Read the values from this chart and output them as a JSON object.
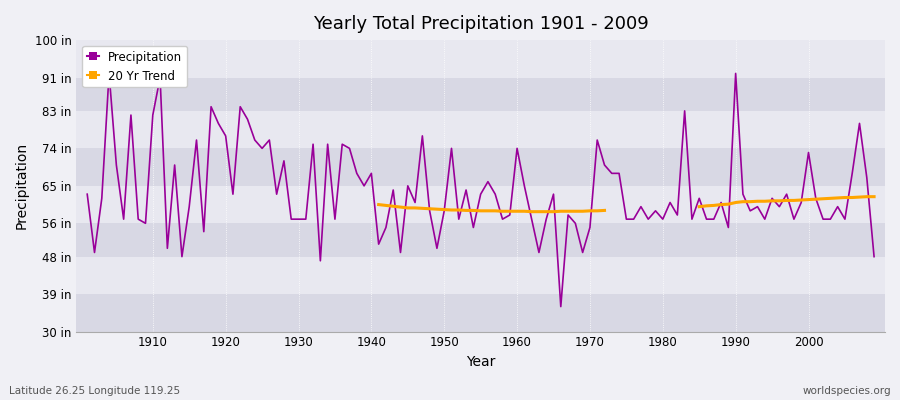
{
  "title": "Yearly Total Precipitation 1901 - 2009",
  "xlabel": "Year",
  "ylabel": "Precipitation",
  "lat_lon_label": "Latitude 26.25 Longitude 119.25",
  "worldspecies_label": "worldspecies.org",
  "ylim": [
    30,
    100
  ],
  "yticks": [
    30,
    39,
    48,
    56,
    65,
    74,
    83,
    91,
    100
  ],
  "ytick_labels": [
    "30 in",
    "39 in",
    "48 in",
    "56 in",
    "65 in",
    "74 in",
    "83 in",
    "91 in",
    "100 in"
  ],
  "xlim": [
    1899.5,
    2010.5
  ],
  "xticks": [
    1910,
    1920,
    1930,
    1940,
    1950,
    1960,
    1970,
    1980,
    1990,
    2000
  ],
  "years": [
    1901,
    1902,
    1903,
    1904,
    1905,
    1906,
    1907,
    1908,
    1909,
    1910,
    1911,
    1912,
    1913,
    1914,
    1915,
    1916,
    1917,
    1918,
    1919,
    1920,
    1921,
    1922,
    1923,
    1924,
    1925,
    1926,
    1927,
    1928,
    1929,
    1930,
    1931,
    1932,
    1933,
    1934,
    1935,
    1936,
    1937,
    1938,
    1939,
    1940,
    1941,
    1942,
    1943,
    1944,
    1945,
    1946,
    1947,
    1948,
    1949,
    1950,
    1951,
    1952,
    1953,
    1954,
    1955,
    1956,
    1957,
    1958,
    1959,
    1960,
    1961,
    1962,
    1963,
    1964,
    1965,
    1966,
    1967,
    1968,
    1969,
    1970,
    1971,
    1972,
    1973,
    1974,
    1975,
    1976,
    1977,
    1978,
    1979,
    1980,
    1981,
    1982,
    1983,
    1984,
    1985,
    1986,
    1987,
    1988,
    1989,
    1990,
    1991,
    1992,
    1993,
    1994,
    1995,
    1996,
    1997,
    1998,
    1999,
    2000,
    2001,
    2002,
    2003,
    2004,
    2005,
    2006,
    2007,
    2008,
    2009
  ],
  "precipitation": [
    63,
    49,
    62,
    92,
    70,
    57,
    82,
    57,
    56,
    82,
    91,
    50,
    70,
    48,
    60,
    76,
    54,
    84,
    80,
    77,
    63,
    84,
    81,
    76,
    74,
    76,
    63,
    71,
    57,
    57,
    57,
    75,
    47,
    75,
    57,
    75,
    74,
    68,
    65,
    68,
    51,
    55,
    64,
    49,
    65,
    61,
    77,
    59,
    50,
    59,
    74,
    57,
    64,
    55,
    63,
    66,
    63,
    57,
    58,
    74,
    65,
    57,
    49,
    57,
    63,
    36,
    58,
    56,
    49,
    55,
    76,
    70,
    68,
    68,
    57,
    57,
    60,
    57,
    59,
    57,
    61,
    58,
    83,
    57,
    62,
    57,
    57,
    61,
    55,
    92,
    63,
    59,
    60,
    57,
    62,
    60,
    63,
    57,
    61,
    73,
    62,
    57,
    57,
    60,
    57,
    68,
    80,
    67,
    48
  ],
  "trend_segments": [
    {
      "years": [
        1941,
        1942,
        1943,
        1944,
        1945,
        1946,
        1947,
        1948,
        1949,
        1950,
        1951,
        1952,
        1953,
        1954,
        1955,
        1956,
        1957,
        1958,
        1959,
        1960,
        1961,
        1962,
        1963,
        1964,
        1965,
        1966,
        1967,
        1968,
        1969,
        1970,
        1971,
        1972
      ],
      "values": [
        60.5,
        60.3,
        60.1,
        59.9,
        59.7,
        59.7,
        59.6,
        59.5,
        59.4,
        59.3,
        59.2,
        59.2,
        59.1,
        59.1,
        59.0,
        59.0,
        59.0,
        58.9,
        58.9,
        58.9,
        58.9,
        58.8,
        58.8,
        58.8,
        58.8,
        58.9,
        58.9,
        58.9,
        58.9,
        59.0,
        59.0,
        59.1
      ]
    },
    {
      "years": [
        1985,
        1986,
        1987,
        1988,
        1989,
        1990,
        1991,
        1992,
        1993,
        1994,
        1995,
        1996,
        1997,
        1998,
        1999,
        2000,
        2001,
        2002,
        2003,
        2004,
        2005,
        2006,
        2007,
        2008,
        2009
      ],
      "values": [
        60.0,
        60.2,
        60.3,
        60.5,
        60.6,
        61.0,
        61.2,
        61.2,
        61.3,
        61.3,
        61.4,
        61.4,
        61.5,
        61.5,
        61.6,
        61.7,
        61.8,
        61.9,
        62.0,
        62.1,
        62.2,
        62.2,
        62.3,
        62.4,
        62.4
      ]
    }
  ],
  "precip_color": "#990099",
  "trend_color": "#FFA500",
  "fig_bg_color": "#f0f0f5",
  "plot_bg_color_light": "#e8e8f0",
  "plot_bg_color_dark": "#d8d8e4",
  "grid_color": "#ffffff",
  "legend_precip_label": "Precipitation",
  "legend_trend_label": "20 Yr Trend"
}
